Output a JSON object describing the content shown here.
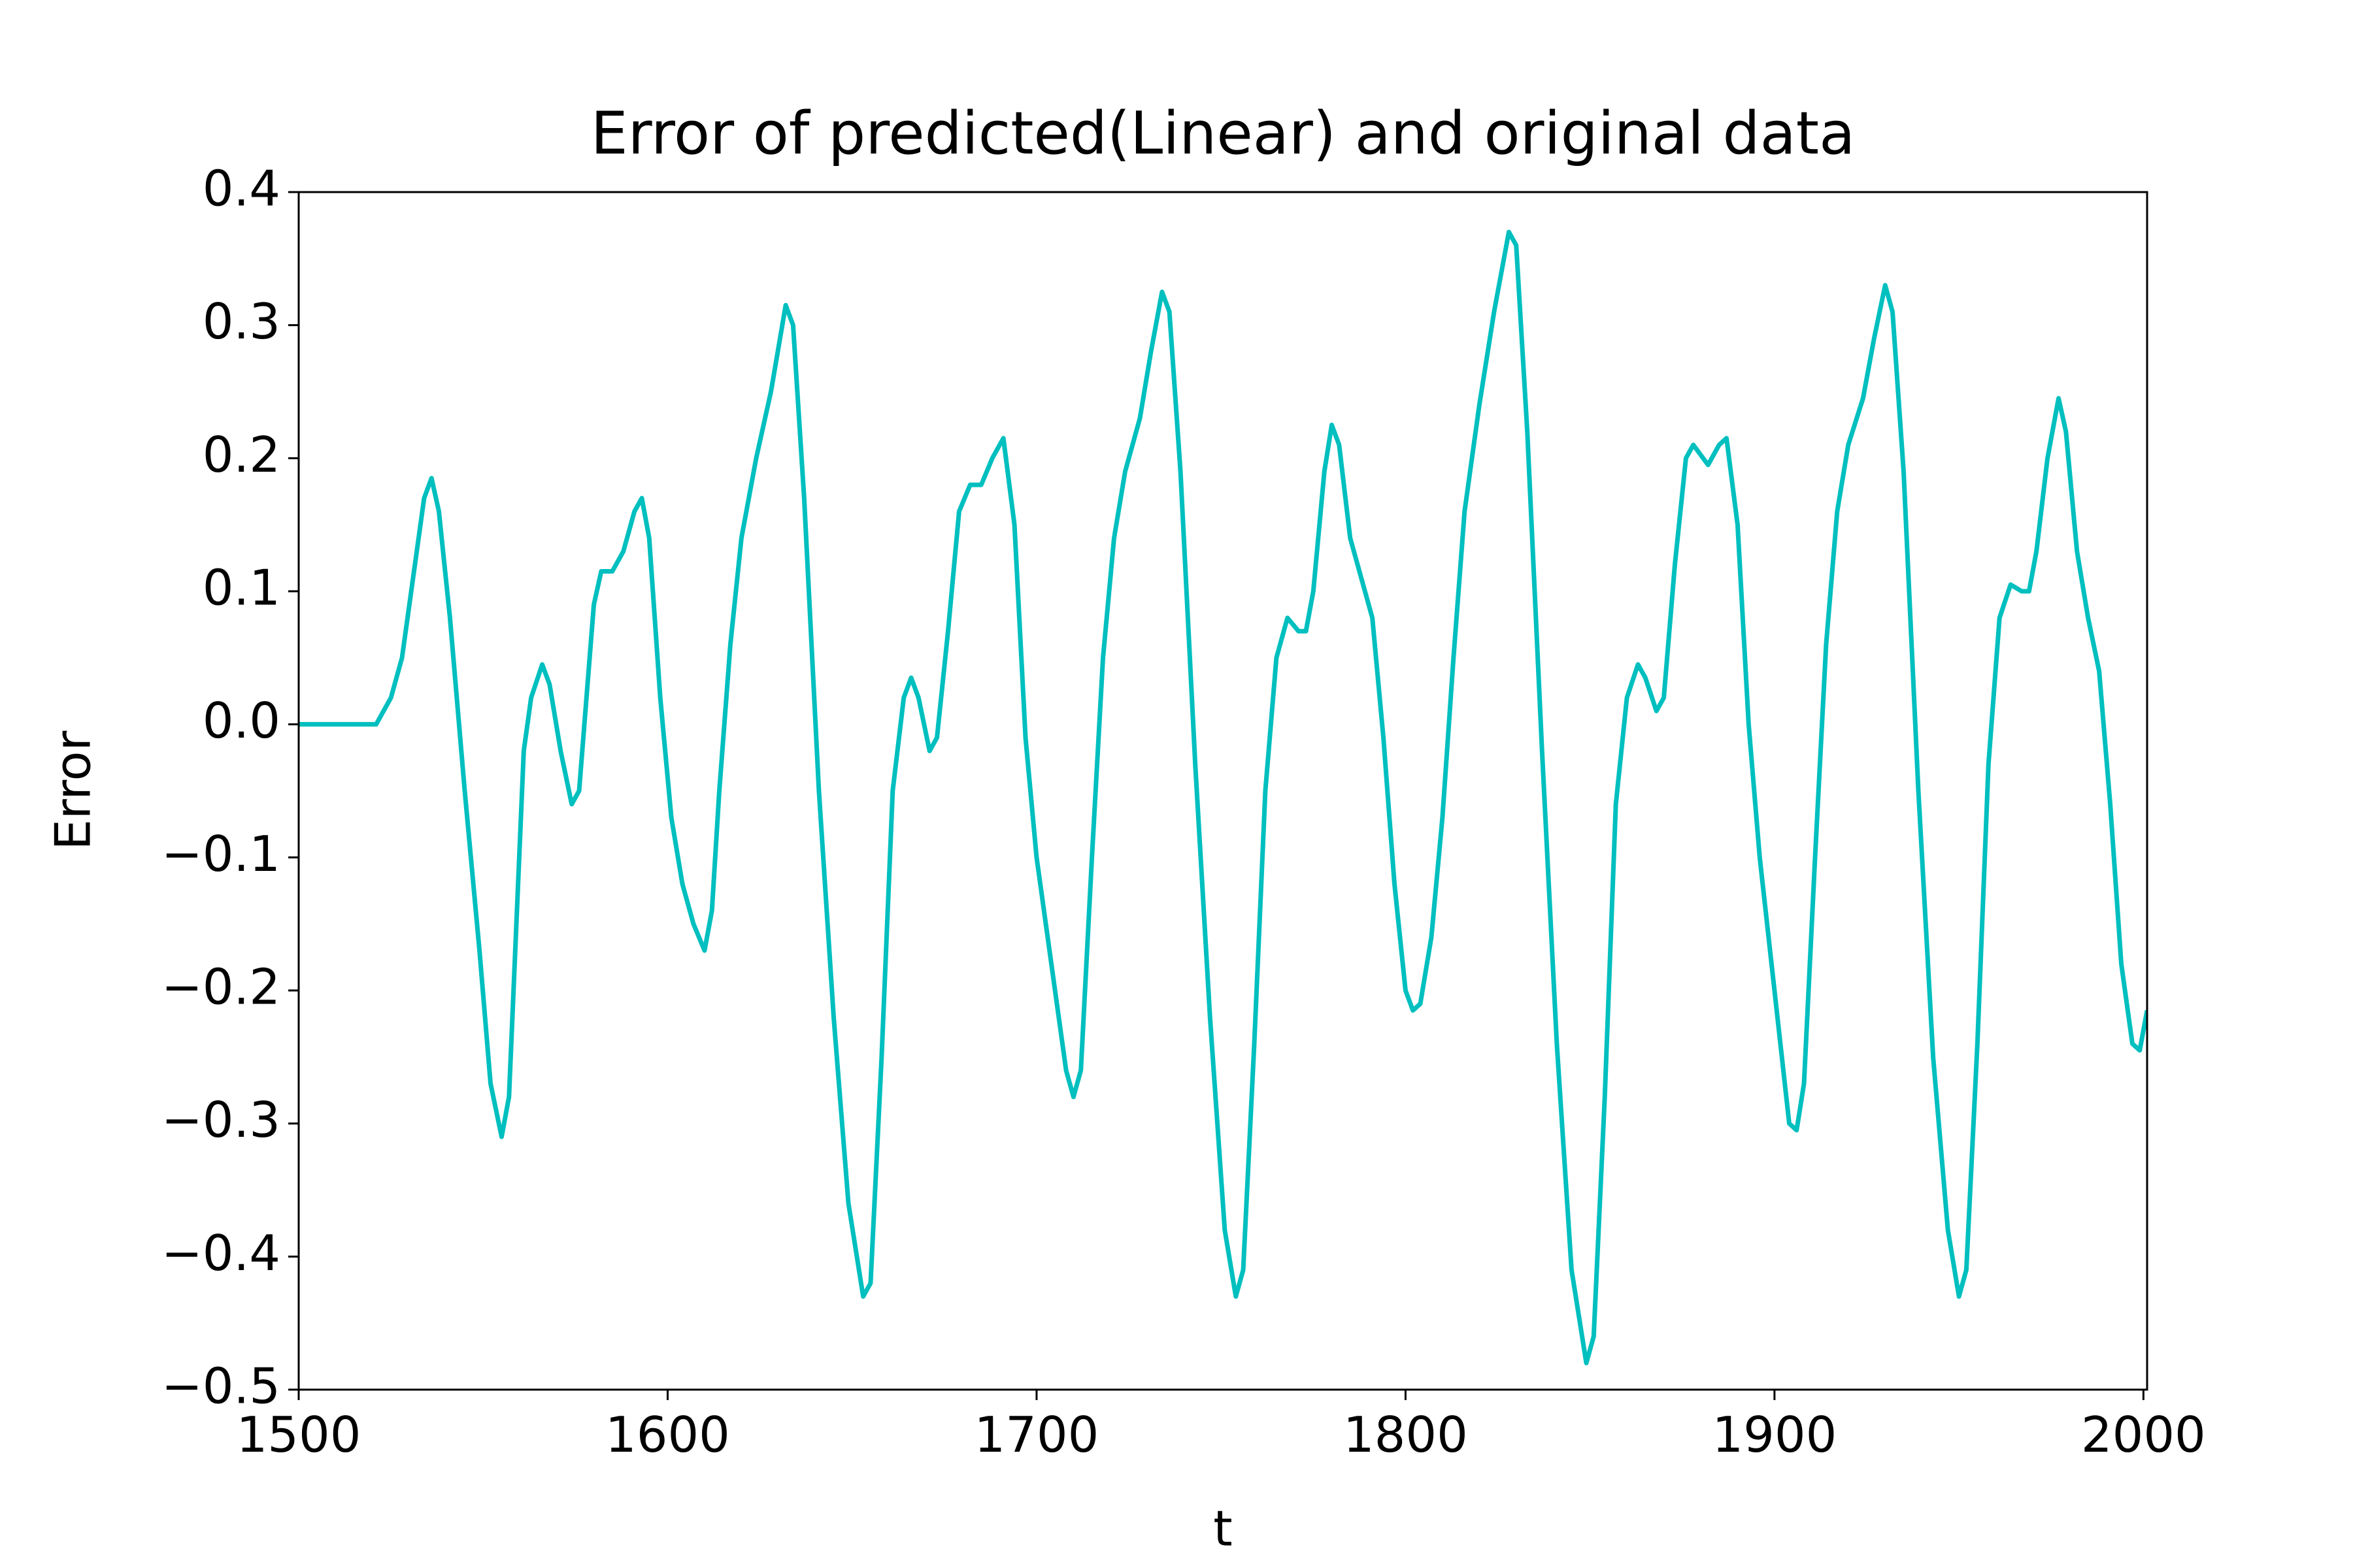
{
  "chart_data": {
    "type": "line",
    "title": "Error of predicted(Linear) and original data",
    "x_label": "t",
    "y_label": "Error",
    "x": [
      1500,
      1521,
      1522,
      1525,
      1528,
      1531,
      1534,
      1536,
      1538,
      1541,
      1545,
      1549,
      1552,
      1555,
      1557,
      1559,
      1561,
      1563,
      1566,
      1568,
      1571,
      1574,
      1576,
      1578,
      1580,
      1582,
      1585,
      1588,
      1591,
      1593,
      1595,
      1598,
      1601,
      1604,
      1607,
      1610,
      1612,
      1614,
      1617,
      1620,
      1624,
      1628,
      1632,
      1634,
      1637,
      1641,
      1645,
      1649,
      1653,
      1655,
      1658,
      1661,
      1664,
      1666,
      1668,
      1671,
      1673,
      1676,
      1679,
      1682,
      1685,
      1688,
      1691,
      1694,
      1697,
      1700,
      1704,
      1708,
      1710,
      1712,
      1715,
      1718,
      1721,
      1724,
      1728,
      1731,
      1734,
      1736,
      1739,
      1743,
      1747,
      1751,
      1754,
      1756,
      1759,
      1762,
      1765,
      1768,
      1771,
      1773,
      1775,
      1778,
      1780,
      1782,
      1785,
      1788,
      1791,
      1794,
      1797,
      1800,
      1802,
      1804,
      1807,
      1810,
      1813,
      1816,
      1820,
      1824,
      1828,
      1830,
      1833,
      1837,
      1841,
      1845,
      1849,
      1851,
      1854,
      1857,
      1860,
      1863,
      1865,
      1868,
      1870,
      1873,
      1876,
      1878,
      1882,
      1885,
      1887,
      1890,
      1893,
      1896,
      1900,
      1904,
      1906,
      1908,
      1911,
      1914,
      1917,
      1920,
      1924,
      1927,
      1930,
      1932,
      1935,
      1939,
      1943,
      1947,
      1950,
      1952,
      1955,
      1958,
      1961,
      1964,
      1967,
      1969,
      1971,
      1974,
      1977,
      1979,
      1982,
      1985,
      1988,
      1991,
      1994,
      1997,
      1999,
      2001
    ],
    "series": [
      {
        "color": "#00bfbf",
        "values": [
          0,
          0,
          0.005,
          0.02,
          0.05,
          0.11,
          0.17,
          0.185,
          0.16,
          0.08,
          -0.05,
          -0.17,
          -0.27,
          -0.31,
          -0.28,
          -0.15,
          -0.02,
          0.02,
          0.045,
          0.03,
          -0.02,
          -0.06,
          -0.05,
          0.02,
          0.09,
          0.115,
          0.115,
          0.13,
          0.16,
          0.17,
          0.14,
          0.02,
          -0.07,
          -0.12,
          -0.15,
          -0.17,
          -0.14,
          -0.05,
          0.06,
          0.14,
          0.2,
          0.25,
          0.315,
          0.3,
          0.17,
          -0.05,
          -0.22,
          -0.36,
          -0.43,
          -0.42,
          -0.25,
          -0.05,
          0.02,
          0.035,
          0.02,
          -0.02,
          -0.01,
          0.07,
          0.16,
          0.18,
          0.18,
          0.2,
          0.215,
          0.15,
          -0.01,
          -0.1,
          -0.18,
          -0.26,
          -0.28,
          -0.26,
          -0.1,
          0.05,
          0.14,
          0.19,
          0.23,
          0.28,
          0.325,
          0.31,
          0.19,
          -0.03,
          -0.22,
          -0.38,
          -0.43,
          -0.41,
          -0.24,
          -0.05,
          0.05,
          0.08,
          0.07,
          0.07,
          0.1,
          0.19,
          0.225,
          0.21,
          0.14,
          0.11,
          0.08,
          -0.01,
          -0.12,
          -0.2,
          -0.215,
          -0.21,
          -0.16,
          -0.07,
          0.05,
          0.16,
          0.24,
          0.31,
          0.37,
          0.36,
          0.22,
          -0.02,
          -0.24,
          -0.41,
          -0.48,
          -0.46,
          -0.28,
          -0.06,
          0.02,
          0.045,
          0.035,
          0.01,
          0.02,
          0.12,
          0.2,
          0.21,
          0.195,
          0.21,
          0.215,
          0.15,
          0.0,
          -0.1,
          -0.2,
          -0.3,
          -0.305,
          -0.27,
          -0.1,
          0.06,
          0.16,
          0.21,
          0.245,
          0.29,
          0.33,
          0.31,
          0.19,
          -0.05,
          -0.25,
          -0.38,
          -0.43,
          -0.41,
          -0.24,
          -0.03,
          0.08,
          0.105,
          0.1,
          0.1,
          0.13,
          0.2,
          0.245,
          0.22,
          0.13,
          0.08,
          0.04,
          -0.06,
          -0.18,
          -0.24,
          -0.245,
          -0.215
        ]
      }
    ],
    "xlim": [
      1500,
      2001
    ],
    "xticks": [
      1500,
      1600,
      1700,
      1800,
      1900,
      2000
    ],
    "ylim": [
      -0.5,
      0.4
    ],
    "yticks": [
      {
        "value": -0.5,
        "label": "−0.5"
      },
      {
        "value": -0.4,
        "label": "−0.4"
      },
      {
        "value": -0.3,
        "label": "−0.3"
      },
      {
        "value": -0.2,
        "label": "−0.2"
      },
      {
        "value": -0.1,
        "label": "−0.1"
      },
      {
        "value": 0,
        "label": "0.0"
      },
      0.1,
      0.2,
      0.3,
      0.4
    ],
    "grid": false
  }
}
